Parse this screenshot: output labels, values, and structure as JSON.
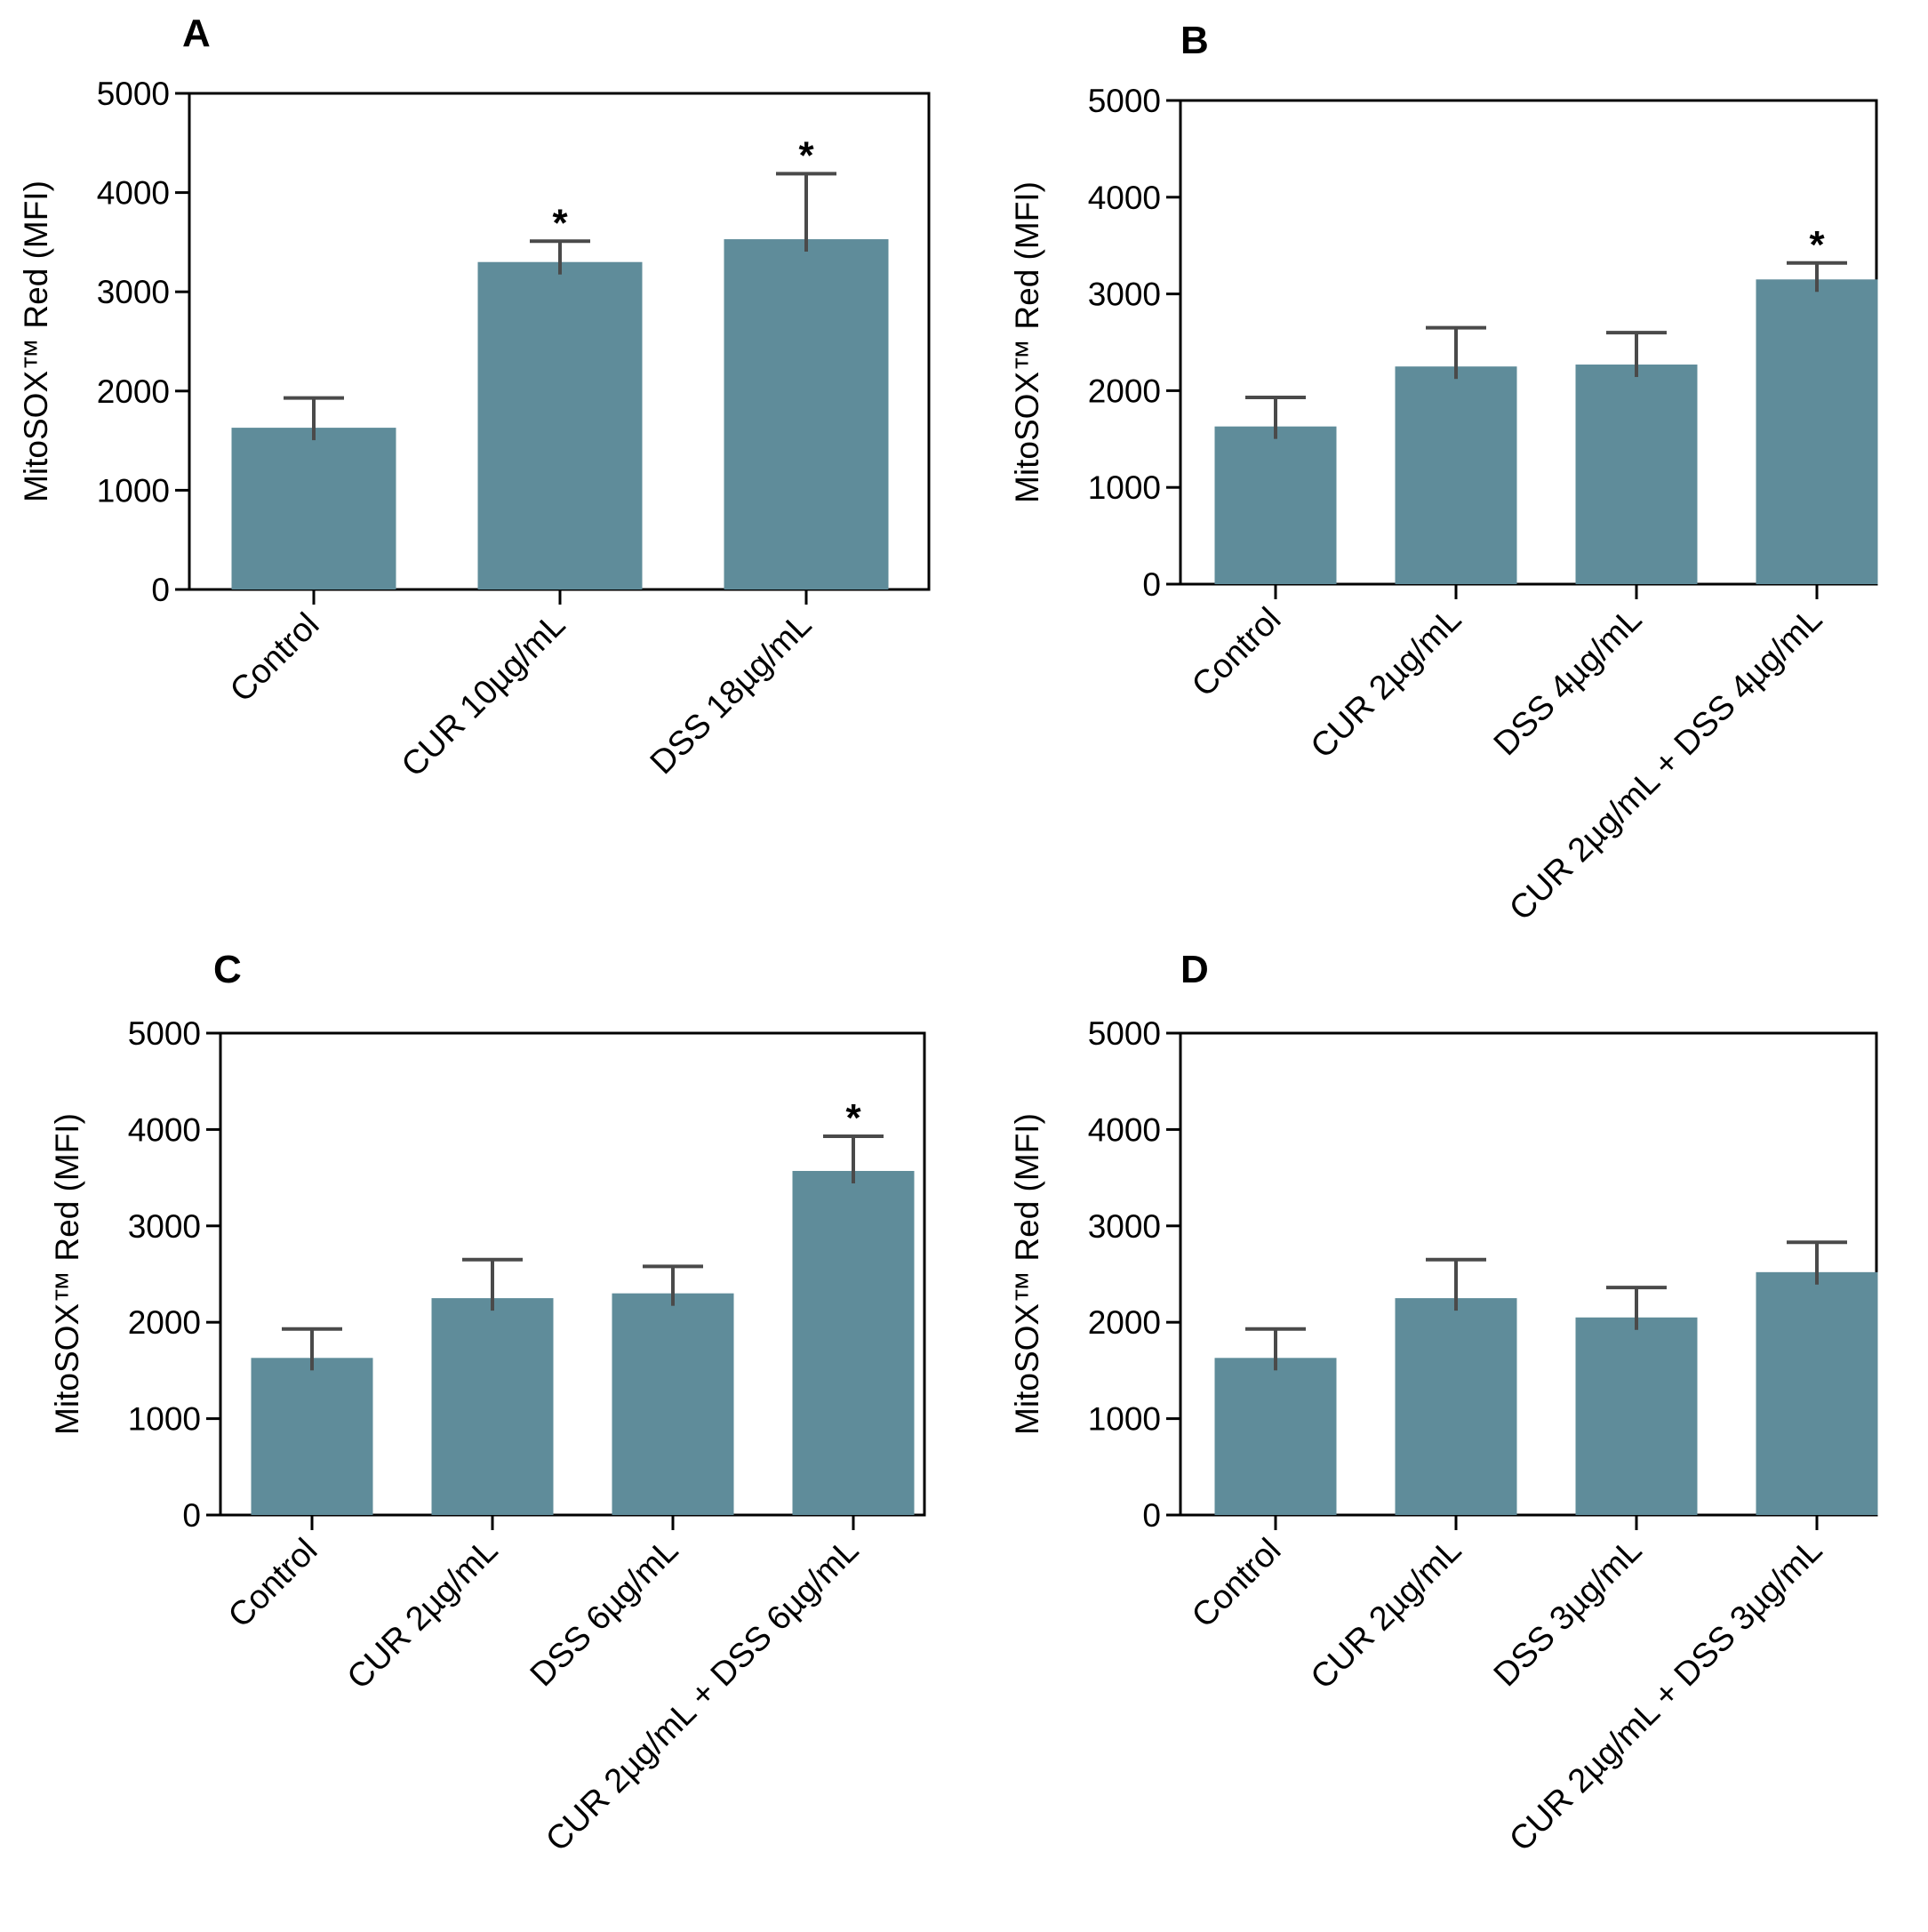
{
  "figure": {
    "bar_color": "#5f8c9a",
    "error_color": "#4a4a4a",
    "axis_color": "#000000"
  },
  "chart_data": [
    {
      "panel": "A",
      "type": "bar",
      "ylabel": "MitoSOX™ Red (MFI)",
      "ylim": [
        0,
        5000
      ],
      "yticks": [
        0,
        1000,
        2000,
        3000,
        4000,
        5000
      ],
      "tick_labels": [
        "0",
        "1000",
        "2000",
        "3000",
        "4000",
        "5000"
      ],
      "categories": [
        "Control",
        "CUR 10µg/mL",
        "DSS 18µg/mL"
      ],
      "values": [
        1630,
        3300,
        3530
      ],
      "errors": [
        300,
        210,
        660
      ],
      "significance": [
        "",
        "*",
        "*"
      ]
    },
    {
      "panel": "B",
      "type": "bar",
      "ylabel": "MitoSOX™ Red (MFI)",
      "ylim": [
        0,
        5000
      ],
      "yticks": [
        0,
        1000,
        2000,
        3000,
        4000,
        5000
      ],
      "tick_labels": [
        "0",
        "1000",
        "2000",
        "3000",
        "4000",
        "5000"
      ],
      "categories": [
        "Control",
        "CUR 2µg/mL",
        "DSS 4µg/mL",
        "CUR 2µg/mL + DSS 4µg/mL"
      ],
      "values": [
        1630,
        2250,
        2270,
        3150
      ],
      "errors": [
        300,
        400,
        330,
        170
      ],
      "significance": [
        "",
        "",
        "",
        "*"
      ]
    },
    {
      "panel": "C",
      "type": "bar",
      "ylabel": "MitoSOX™ Red (MFI)",
      "ylim": [
        0,
        5000
      ],
      "yticks": [
        0,
        1000,
        2000,
        3000,
        4000,
        5000
      ],
      "tick_labels": [
        "0",
        "1000",
        "2000",
        "3000",
        "4000",
        "5000"
      ],
      "categories": [
        "Control",
        "CUR 2µg/mL",
        "DSS 6µg/mL",
        "CUR 2µg/mL + DSS 6µg/mL"
      ],
      "values": [
        1630,
        2250,
        2300,
        3570
      ],
      "errors": [
        300,
        400,
        280,
        360
      ],
      "significance": [
        "",
        "",
        "",
        "*"
      ]
    },
    {
      "panel": "D",
      "type": "bar",
      "ylabel": "MitoSOX™ Red (MFI)",
      "ylim": [
        0,
        5000
      ],
      "yticks": [
        0,
        1000,
        2000,
        3000,
        4000,
        5000
      ],
      "tick_labels": [
        "0",
        "1000",
        "2000",
        "3000",
        "4000",
        "5000"
      ],
      "categories": [
        "Control",
        "CUR 2µg/mL",
        "DSS 3µg/mL",
        "CUR 2µg/mL + DSS 3µg/mL"
      ],
      "values": [
        1630,
        2250,
        2050,
        2520
      ],
      "errors": [
        300,
        400,
        310,
        310
      ],
      "significance": [
        "",
        "",
        "",
        ""
      ]
    }
  ]
}
